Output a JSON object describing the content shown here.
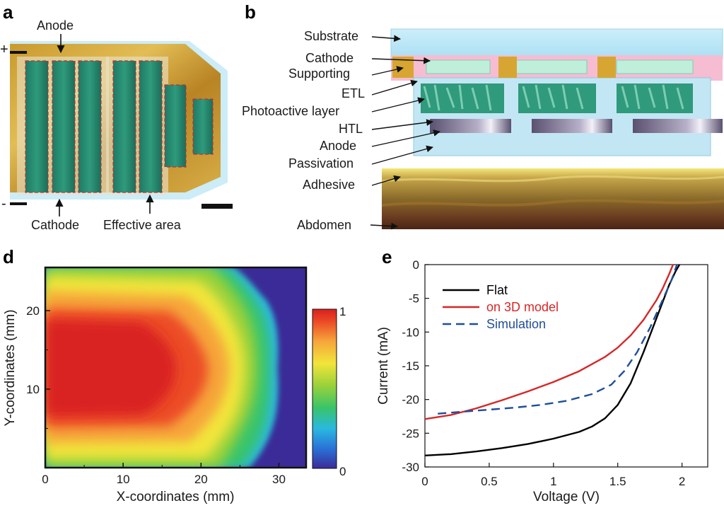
{
  "panels": {
    "a": {
      "letter": "a",
      "labels": {
        "anode": "Anode",
        "cathode": "Cathode",
        "effective_area": "Effective area",
        "plus": "+",
        "minus": "-"
      }
    },
    "b": {
      "letter": "b",
      "layers": [
        "Substrate",
        "Cathode",
        "Supporting",
        "ETL",
        "Photoactive layer",
        "HTL",
        "Anode",
        "Passivation",
        "Adhesive",
        "Abdomen"
      ]
    },
    "d": {
      "letter": "d",
      "colorbar": {
        "max_label": "1",
        "min_label": "0",
        "colors": [
          "#3b2b98",
          "#2a6fd6",
          "#2ab8e0",
          "#39c46a",
          "#9ad13a",
          "#f2e53a",
          "#f6a53a",
          "#ec4b26",
          "#d92020"
        ]
      }
    },
    "e": {
      "letter": "e"
    }
  },
  "chart_data": [
    {
      "type": "heatmap",
      "panel": "d",
      "xlabel": "X-coordinates (mm)",
      "ylabel": "Y-coordinates (mm)",
      "xlim": [
        0,
        33.5
      ],
      "ylim": [
        0,
        25.5
      ],
      "xticks": [
        0,
        10,
        20,
        30
      ],
      "yticks": [
        10,
        20
      ],
      "colorbar_range": [
        0,
        1
      ],
      "colorscale": "jet",
      "peak_x_mm": 8,
      "peak_y_mm": 12.5,
      "low_region": "right edge, x > 28 mm"
    },
    {
      "type": "line",
      "panel": "e",
      "xlabel": "Voltage (V)",
      "ylabel": "Current (mA)",
      "xlim": [
        0,
        2.2
      ],
      "ylim": [
        -30,
        0
      ],
      "xticks": [
        0,
        0.5,
        1,
        1.5,
        2
      ],
      "yticks": [
        0,
        -5,
        -10,
        -15,
        -20,
        -25,
        -30
      ],
      "legend_position": "top-left",
      "series": [
        {
          "name": "Flat",
          "color": "#000000",
          "dash": "solid",
          "x": [
            0,
            0.2,
            0.4,
            0.6,
            0.8,
            1.0,
            1.2,
            1.3,
            1.4,
            1.5,
            1.6,
            1.7,
            1.8,
            1.9,
            1.95,
            1.98
          ],
          "y": [
            -28.3,
            -28.1,
            -27.7,
            -27.2,
            -26.6,
            -25.8,
            -24.8,
            -24.0,
            -22.8,
            -20.8,
            -17.6,
            -13.0,
            -8.0,
            -3.0,
            -1.0,
            0
          ]
        },
        {
          "name": "on 3D model",
          "color": "#d62728",
          "dash": "solid",
          "x": [
            0,
            0.2,
            0.4,
            0.6,
            0.8,
            1.0,
            1.2,
            1.4,
            1.5,
            1.6,
            1.7,
            1.8,
            1.85,
            1.9,
            1.93
          ],
          "y": [
            -22.9,
            -22.3,
            -21.3,
            -20.1,
            -18.8,
            -17.4,
            -15.8,
            -13.7,
            -12.3,
            -10.5,
            -8.2,
            -5.3,
            -3.5,
            -1.4,
            0
          ]
        },
        {
          "name": "Simulation",
          "color": "#1f4e9a",
          "dash": "dashed",
          "x": [
            0.1,
            0.3,
            0.5,
            0.7,
            0.9,
            1.1,
            1.3,
            1.45,
            1.55,
            1.65,
            1.75,
            1.85,
            1.92,
            1.96
          ],
          "y": [
            -22.1,
            -21.8,
            -21.5,
            -21.2,
            -20.8,
            -20.2,
            -19.2,
            -17.8,
            -15.8,
            -13.0,
            -9.4,
            -5.2,
            -2.2,
            0
          ]
        }
      ]
    }
  ]
}
